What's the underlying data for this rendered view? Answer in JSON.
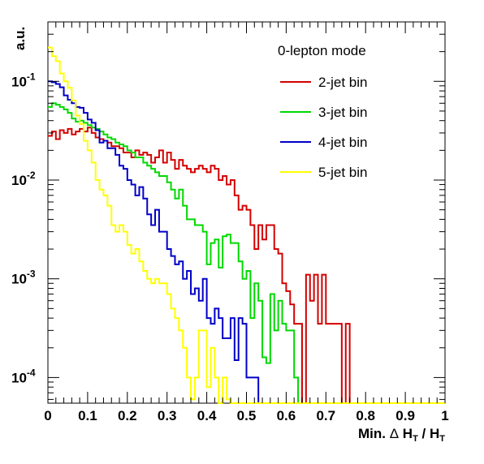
{
  "chart_data": {
    "type": "histogram-step",
    "xlabel": {
      "prefix": "Min. ",
      "delta": "Δ",
      "h1": "H",
      "sub1": "T",
      "slash": " / ",
      "h2": "H",
      "sub2": "T"
    },
    "ylabel": "a.u.",
    "xlim": [
      0,
      1
    ],
    "ylim": [
      5.5e-05,
      0.4
    ],
    "yscale": "log",
    "x_ticks": [
      "0",
      "0.1",
      "0.2",
      "0.3",
      "0.4",
      "0.5",
      "0.6",
      "0.7",
      "0.8",
      "0.9",
      "1"
    ],
    "y_ticks": [
      {
        "base": "10",
        "exp": "-4",
        "value": 0.0001
      },
      {
        "base": "10",
        "exp": "-3",
        "value": 0.001
      },
      {
        "base": "10",
        "exp": "-2",
        "value": 0.01
      },
      {
        "base": "10",
        "exp": "-1",
        "value": 0.1
      }
    ],
    "legend": {
      "header": "0-lepton mode",
      "placement": "top-right"
    },
    "bin_width": 0.01,
    "series": [
      {
        "name": "2-jet bin",
        "color": "#d40000",
        "values": [
          0.028,
          0.031,
          0.026,
          0.032,
          0.03,
          0.033,
          0.029,
          0.031,
          0.033,
          0.031,
          0.034,
          0.03,
          0.027,
          0.026,
          0.025,
          0.024,
          0.022,
          0.022,
          0.021,
          0.019,
          0.019,
          0.017,
          0.02,
          0.018,
          0.019,
          0.018,
          0.015,
          0.017,
          0.02,
          0.015,
          0.019,
          0.016,
          0.013,
          0.016,
          0.014,
          0.013,
          0.012,
          0.013,
          0.014,
          0.013,
          0.012,
          0.014,
          0.013,
          0.01,
          0.011,
          0.009,
          0.01,
          0.007,
          0.005,
          0.0055,
          0.005,
          0.0035,
          0.002,
          0.0035,
          0.0025,
          0.0035,
          0.0035,
          0.002,
          0.0018,
          0.0009,
          0.00075,
          0.00055,
          0.00035,
          0.00035,
          0.0,
          0.0011,
          0.0006,
          0.0011,
          0.00035,
          0.0011,
          0.00035,
          0.00035,
          0.00035,
          0.00035,
          0.0,
          0.00035,
          0.0,
          0.0,
          0.0,
          0.0,
          0.0,
          0.0,
          0.0,
          0.0,
          0.0,
          0.0,
          0.0,
          0.0,
          0.0,
          0.0,
          0.0,
          0.0,
          0.0,
          0.0,
          0.0,
          0.0,
          0.0,
          0.0,
          0.0,
          0.0
        ]
      },
      {
        "name": "3-jet bin",
        "color": "#00d800",
        "values": [
          0.055,
          0.06,
          0.058,
          0.055,
          0.052,
          0.048,
          0.042,
          0.039,
          0.04,
          0.038,
          0.036,
          0.034,
          0.033,
          0.031,
          0.029,
          0.027,
          0.026,
          0.024,
          0.023,
          0.022,
          0.02,
          0.019,
          0.017,
          0.017,
          0.015,
          0.014,
          0.013,
          0.012,
          0.011,
          0.011,
          0.0095,
          0.008,
          0.0065,
          0.008,
          0.0055,
          0.004,
          0.004,
          0.0035,
          0.0035,
          0.003,
          0.0014,
          0.0023,
          0.0025,
          0.0013,
          0.0027,
          0.0028,
          0.0023,
          0.0023,
          0.0015,
          0.001,
          0.0012,
          0.0004,
          0.0009,
          0.0006,
          0.00016,
          0.00014,
          0.0007,
          0.0003,
          0.0006,
          0.00035,
          0.0003,
          0.0003,
          0.0001,
          0.0,
          0.0,
          0.0,
          0.0,
          0.0,
          0.0,
          0.0,
          0.0,
          0.0,
          0.0,
          0.0,
          0.0,
          0.0,
          0.0,
          0.0,
          0.0,
          0.0,
          0.0,
          0.0,
          0.0,
          0.0,
          0.0,
          0.0,
          0.0,
          0.0,
          0.0,
          0.0,
          0.0,
          0.0,
          0.0,
          0.0,
          0.0,
          0.0,
          0.0,
          0.0,
          0.0,
          0.0
        ]
      },
      {
        "name": "4-jet bin",
        "color": "#0000c8",
        "values": [
          0.1,
          0.098,
          0.094,
          0.087,
          0.072,
          0.065,
          0.06,
          0.055,
          0.054,
          0.048,
          0.041,
          0.038,
          0.032,
          0.024,
          0.025,
          0.021,
          0.021,
          0.018,
          0.014,
          0.013,
          0.01,
          0.009,
          0.007,
          0.0085,
          0.0065,
          0.0045,
          0.0035,
          0.005,
          0.003,
          0.003,
          0.002,
          0.0017,
          0.0014,
          0.0015,
          0.001,
          0.0012,
          0.0007,
          0.0008,
          0.0006,
          0.001,
          0.0004,
          0.00035,
          0.0005,
          0.0004,
          0.00025,
          0.00025,
          0.0004,
          0.00015,
          0.0004,
          0.00035,
          0.0001,
          0.0001,
          0.0001,
          0.0,
          0.0,
          0.0,
          0.0,
          0.0,
          0.0,
          0.0,
          0.0,
          0.0,
          0.0,
          0.0,
          0.0,
          0.0,
          0.0,
          0.0,
          0.0,
          0.0,
          0.0,
          0.0,
          0.0,
          0.0,
          0.0,
          0.0,
          0.0,
          0.0,
          0.0,
          0.0,
          0.0,
          0.0,
          0.0,
          0.0,
          0.0,
          0.0,
          0.0,
          0.0,
          0.0,
          0.0,
          0.0,
          0.0,
          0.0,
          0.0,
          0.0,
          0.0,
          0.0,
          0.0,
          0.0,
          0.0
        ]
      },
      {
        "name": "5-jet bin",
        "color": "#ffff00",
        "values": [
          0.22,
          0.18,
          0.16,
          0.12,
          0.1,
          0.086,
          0.064,
          0.045,
          0.037,
          0.025,
          0.02,
          0.015,
          0.01,
          0.008,
          0.007,
          0.0055,
          0.0035,
          0.003,
          0.0035,
          0.003,
          0.0022,
          0.0018,
          0.002,
          0.0015,
          0.0012,
          0.001,
          0.0009,
          0.001,
          0.0009,
          0.0009,
          0.0007,
          0.0005,
          0.0004,
          0.0003,
          0.0002,
          0.0001,
          6e-05,
          0.0001,
          0.0003,
          0.0003,
          8e-05,
          0.0002,
          0.0001,
          0.0,
          0.0001,
          6e-05,
          0.0,
          0.0,
          0.0,
          0.0,
          0.0,
          0.0,
          0.0,
          0.0,
          0.0,
          0.0,
          0.0,
          0.0,
          0.0,
          0.0,
          0.0,
          0.0,
          0.0,
          0.0,
          0.0,
          0.0,
          0.0,
          0.0,
          0.0,
          0.0,
          0.0,
          0.0,
          0.0,
          0.0,
          0.0,
          0.0,
          0.0,
          0.0,
          0.0,
          0.0,
          0.0,
          0.0,
          0.0,
          0.0,
          0.0,
          0.0,
          0.0,
          0.0,
          0.0,
          0.0,
          0.0,
          0.0,
          0.0,
          0.0,
          0.0,
          0.0,
          0.0,
          0.0,
          0.0,
          0.0
        ]
      }
    ]
  }
}
